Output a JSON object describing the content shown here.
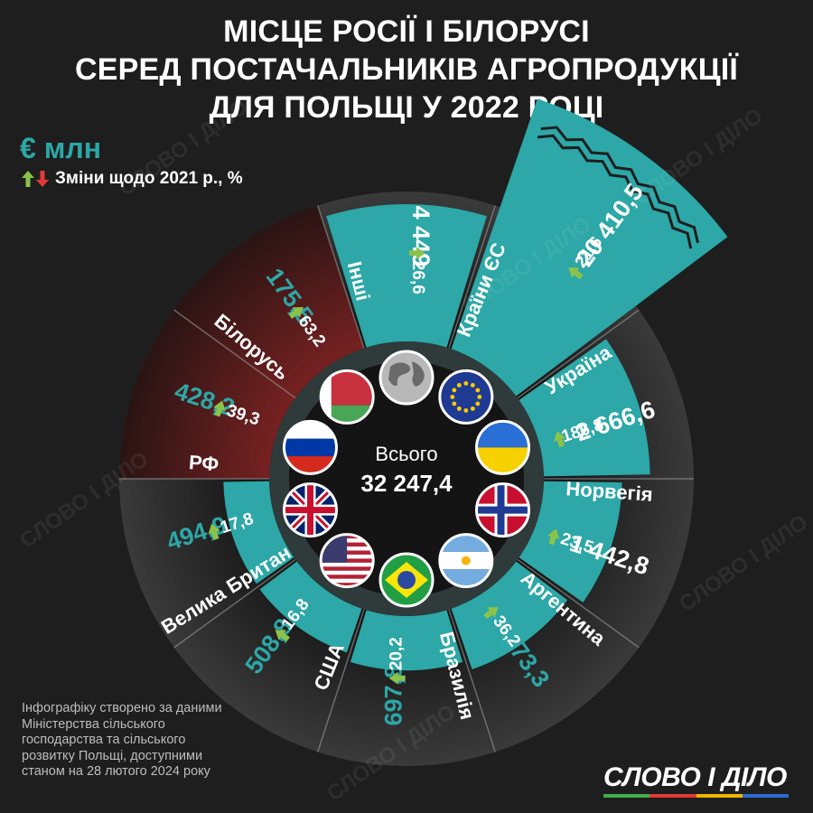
{
  "title_lines": [
    "МІСЦЕ РОСІЇ І БІЛОРУСІ",
    "СЕРЕД ПОСТАЧАЛЬНИКІВ АГРОПРОДУКЦІЇ",
    "ДЛЯ ПОЛЬЩІ У 2022 РОЦІ"
  ],
  "unit": "€ млн",
  "legend_text": "Зміни щодо 2021 р., %",
  "source_text": "Інфографіку створено за даними Міністерства сільського господарства та сільського розвитку Польщі, доступними станом на 28 лютого 2024 року",
  "logo_text": "СЛОВО І ДІЛО",
  "watermark": "СЛОВО І ДІЛО",
  "total": {
    "label": "Всього",
    "value": "32 247,4"
  },
  "colors": {
    "teal": "#2da7a7",
    "red": "#8b2a2a",
    "arrow_up": "#8bc34a",
    "arrow_down": "#e53935",
    "logo_bars": [
      "#3fae49",
      "#e53935",
      "#f0b400",
      "#2d6bd1"
    ]
  },
  "chart_data": {
    "type": "polar-bar",
    "unit": "€ млн",
    "total": 32247.4,
    "series": [
      {
        "country": "Інші",
        "value": 4449,
        "value_label": "4 449",
        "change": 26.6,
        "change_label": "26,6",
        "flag": "globe-icon",
        "highlight": false,
        "truncated": false
      },
      {
        "country": "Країни ЄС",
        "value": 20410.5,
        "value_label": "20 410,5",
        "change": 21.6,
        "change_label": "21,6",
        "flag": "eu-flag-icon",
        "highlight": false,
        "truncated": true
      },
      {
        "country": "Україна",
        "value": 2666.6,
        "value_label": "2 666,6",
        "change": 186.8,
        "change_label": "186,8",
        "flag": "ukraine-flag-icon",
        "highlight": false,
        "truncated": false
      },
      {
        "country": "Норвегія",
        "value": 1442.8,
        "value_label": "1 442,8",
        "change": 23.5,
        "change_label": "23,5",
        "flag": "norway-flag-icon",
        "highlight": false,
        "truncated": false
      },
      {
        "country": "Аргентина",
        "value": 973.3,
        "value_label": "973,3",
        "change": 36.2,
        "change_label": "36,2",
        "flag": "argentina-flag-icon",
        "highlight": false,
        "truncated": false
      },
      {
        "country": "Бразилія",
        "value": 697.8,
        "value_label": "697,8",
        "change": 20.2,
        "change_label": "20,2",
        "flag": "brazil-flag-icon",
        "highlight": false,
        "truncated": false
      },
      {
        "country": "США",
        "value": 508.8,
        "value_label": "508,8",
        "change": 16.8,
        "change_label": "16,8",
        "flag": "usa-flag-icon",
        "highlight": false,
        "truncated": false
      },
      {
        "country": "Велика Британія",
        "value": 494.9,
        "value_label": "494,9",
        "change": 17.8,
        "change_label": "17,8",
        "flag": "uk-flag-icon",
        "highlight": false,
        "truncated": false
      },
      {
        "country": "РФ",
        "value": 428.2,
        "value_label": "428,2",
        "change": 39.3,
        "change_label": "39,3",
        "flag": "russia-flag-icon",
        "highlight": true,
        "truncated": false
      },
      {
        "country": "Білорусь",
        "value": 175.5,
        "value_label": "175,5",
        "change": 63.2,
        "change_label": "63,2",
        "flag": "belarus-flag-icon",
        "highlight": true,
        "truncated": false
      }
    ]
  }
}
